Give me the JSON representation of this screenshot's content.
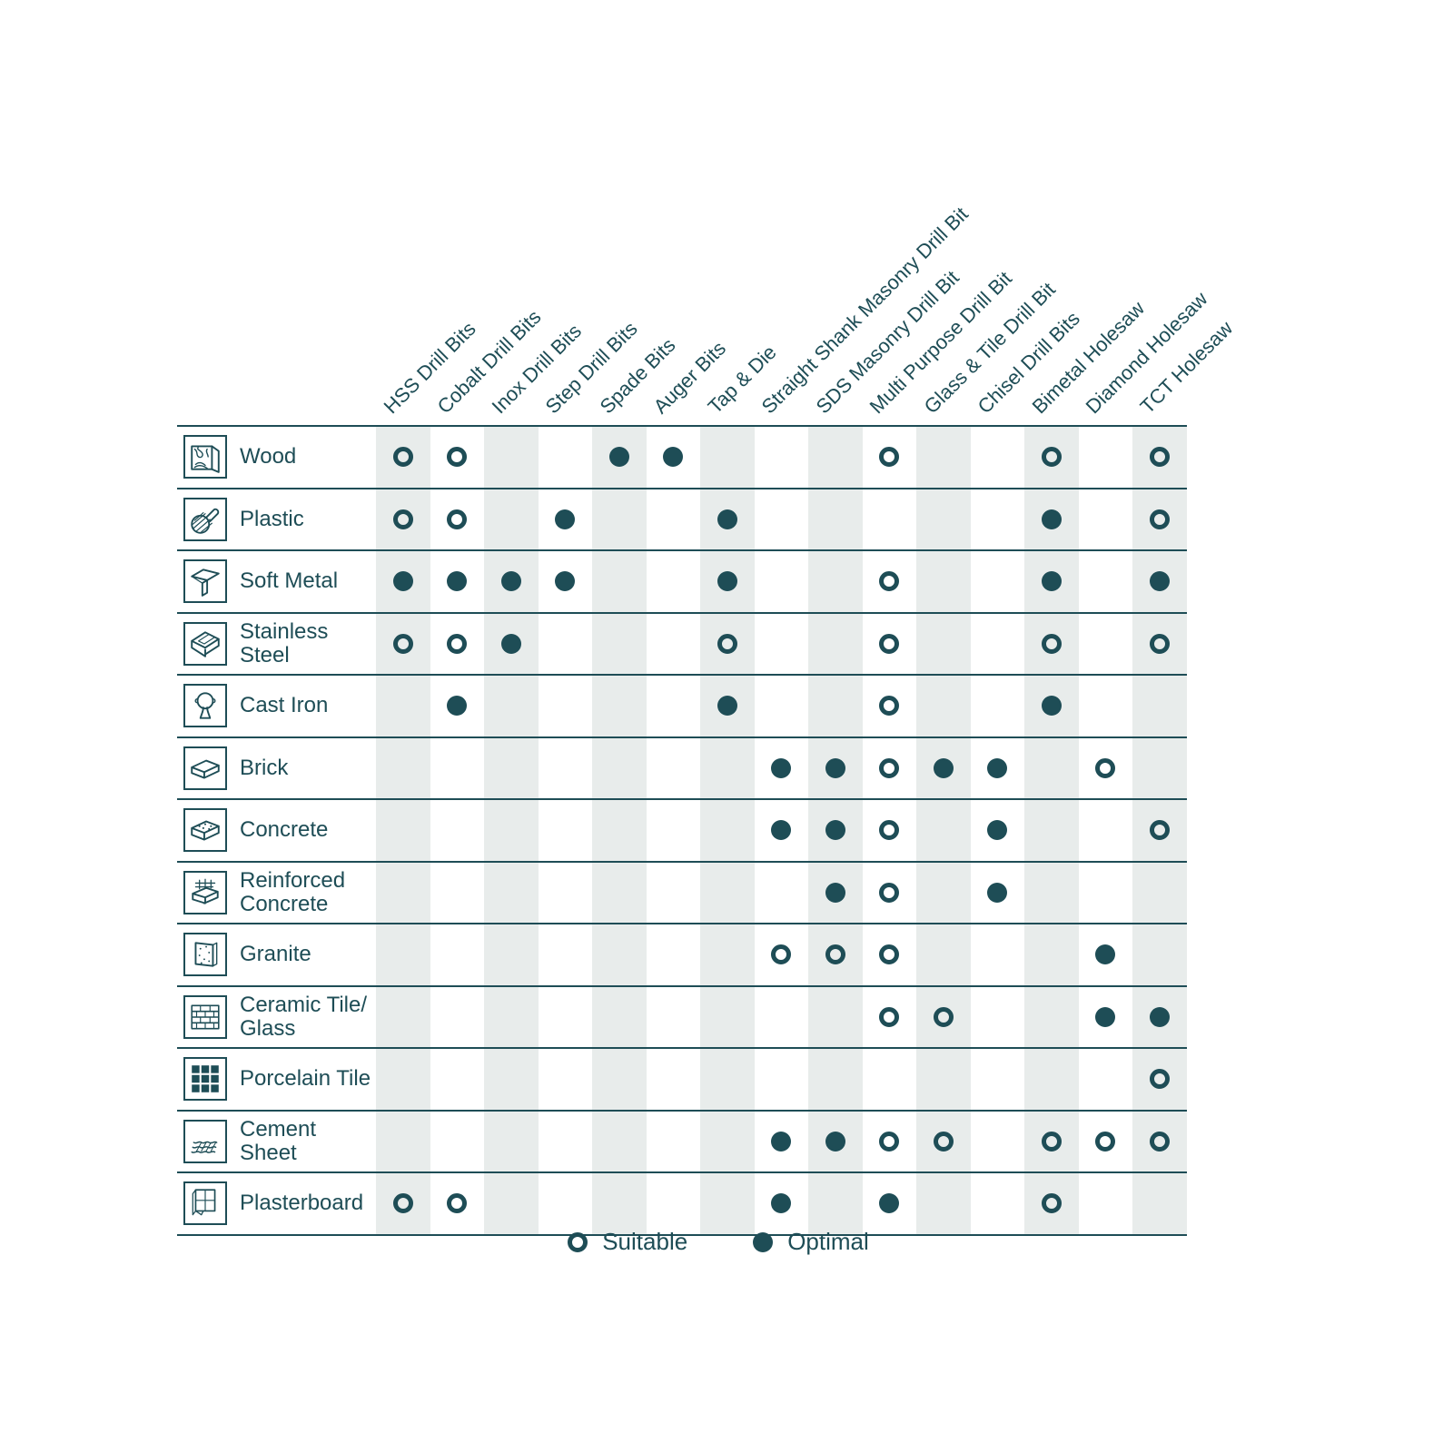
{
  "colors": {
    "accent": "#1e4d56",
    "stripe": "#e8eceb",
    "background": "#ffffff"
  },
  "chart_data": {
    "type": "table",
    "matrix_kind": "drill-bit-material-compatibility",
    "columns": [
      "HSS Drill Bits",
      "Cobalt Drill Bits",
      "Inox Drill Bits",
      "Step Drill Bits",
      "Spade Bits",
      "Auger Bits",
      "Tap & Die",
      "Straight Shank Masonry Drill Bit",
      "SDS Masonry Drill Bit",
      "Multi Purpose Drill Bit",
      "Glass & Tile Drill Bit",
      "Chisel Drill Bits",
      "Bimetal Holesaw",
      "Diamond Holesaw",
      "TCT Holesaw"
    ],
    "rows": [
      {
        "material": "Wood",
        "icon": "wood-icon",
        "cells": [
          "suitable",
          "suitable",
          "",
          "",
          "optimal",
          "optimal",
          "",
          "",
          "",
          "suitable",
          "",
          "",
          "suitable",
          "",
          "suitable"
        ]
      },
      {
        "material": "Plastic",
        "icon": "plastic-icon",
        "cells": [
          "suitable",
          "suitable",
          "",
          "optimal",
          "",
          "",
          "optimal",
          "",
          "",
          "",
          "",
          "",
          "optimal",
          "",
          "suitable"
        ]
      },
      {
        "material": "Soft Metal",
        "icon": "soft-metal-icon",
        "cells": [
          "optimal",
          "optimal",
          "optimal",
          "optimal",
          "",
          "",
          "optimal",
          "",
          "",
          "suitable",
          "",
          "",
          "optimal",
          "",
          "optimal"
        ]
      },
      {
        "material": "Stainless Steel",
        "icon": "stainless-steel-icon",
        "cells": [
          "suitable",
          "suitable",
          "optimal",
          "",
          "",
          "",
          "suitable",
          "",
          "",
          "suitable",
          "",
          "",
          "suitable",
          "",
          "suitable"
        ]
      },
      {
        "material": "Cast Iron",
        "icon": "cast-iron-icon",
        "cells": [
          "",
          "optimal",
          "",
          "",
          "",
          "",
          "optimal",
          "",
          "",
          "suitable",
          "",
          "",
          "optimal",
          "",
          ""
        ]
      },
      {
        "material": "Brick",
        "icon": "brick-icon",
        "cells": [
          "",
          "",
          "",
          "",
          "",
          "",
          "",
          "optimal",
          "optimal",
          "suitable",
          "optimal",
          "optimal",
          "",
          "suitable",
          ""
        ]
      },
      {
        "material": "Concrete",
        "icon": "concrete-icon",
        "cells": [
          "",
          "",
          "",
          "",
          "",
          "",
          "",
          "optimal",
          "optimal",
          "suitable",
          "",
          "optimal",
          "",
          "",
          "suitable"
        ]
      },
      {
        "material": "Reinforced\nConcrete",
        "icon": "reinforced-concrete-icon",
        "cells": [
          "",
          "",
          "",
          "",
          "",
          "",
          "",
          "",
          "optimal",
          "suitable",
          "",
          "optimal",
          "",
          "",
          ""
        ]
      },
      {
        "material": "Granite",
        "icon": "granite-icon",
        "cells": [
          "",
          "",
          "",
          "",
          "",
          "",
          "",
          "suitable",
          "suitable",
          "suitable",
          "",
          "",
          "",
          "optimal",
          ""
        ]
      },
      {
        "material": "Ceramic Tile/\nGlass",
        "icon": "ceramic-tile-glass-icon",
        "cells": [
          "",
          "",
          "",
          "",
          "",
          "",
          "",
          "",
          "",
          "suitable",
          "suitable",
          "",
          "",
          "optimal",
          "optimal"
        ]
      },
      {
        "material": "Porcelain Tile",
        "icon": "porcelain-tile-icon",
        "cells": [
          "",
          "",
          "",
          "",
          "",
          "",
          "",
          "",
          "",
          "",
          "",
          "",
          "",
          "",
          "suitable"
        ]
      },
      {
        "material": "Cement Sheet",
        "icon": "cement-sheet-icon",
        "cells": [
          "",
          "",
          "",
          "",
          "",
          "",
          "",
          "optimal",
          "optimal",
          "suitable",
          "suitable",
          "",
          "suitable",
          "suitable",
          "suitable"
        ]
      },
      {
        "material": "Plasterboard",
        "icon": "plasterboard-icon",
        "cells": [
          "suitable",
          "suitable",
          "",
          "",
          "",
          "",
          "",
          "optimal",
          "",
          "optimal",
          "",
          "",
          "suitable",
          "",
          ""
        ]
      }
    ],
    "legend": [
      {
        "symbol": "open-circle",
        "label": "Suitable"
      },
      {
        "symbol": "filled-circle",
        "label": "Optimal"
      }
    ]
  }
}
